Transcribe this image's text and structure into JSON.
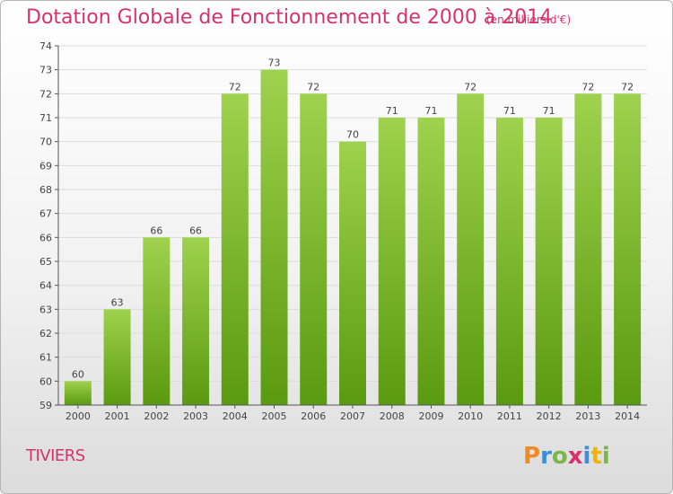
{
  "title": "Dotation Globale de Fonctionnement de 2000 à 2014",
  "unit_note": "(en milliers d'€)",
  "commune": "TIVIERS",
  "brand": "Proxiti",
  "colors": {
    "title": "#d6336c",
    "bar_top": "#9fd24e",
    "bar_bottom": "#5a9a10",
    "axis": "#555555",
    "grid": "#dcdcdc"
  },
  "chart_data": {
    "type": "bar",
    "title": "Dotation Globale de Fonctionnement de 2000 à 2014",
    "subtitle": "(en milliers d'€)",
    "xlabel": "",
    "ylabel": "",
    "categories": [
      "2000",
      "2001",
      "2002",
      "2003",
      "2004",
      "2005",
      "2006",
      "2007",
      "2008",
      "2009",
      "2010",
      "2011",
      "2012",
      "2013",
      "2014"
    ],
    "values": [
      60,
      63,
      66,
      66,
      72,
      73,
      72,
      70,
      71,
      71,
      72,
      71,
      71,
      72,
      72
    ],
    "ylim": [
      59,
      74
    ],
    "yticks": [
      59,
      60,
      61,
      62,
      63,
      64,
      65,
      66,
      67,
      68,
      69,
      70,
      71,
      72,
      73,
      74
    ],
    "grid": true,
    "data_labels": true
  }
}
